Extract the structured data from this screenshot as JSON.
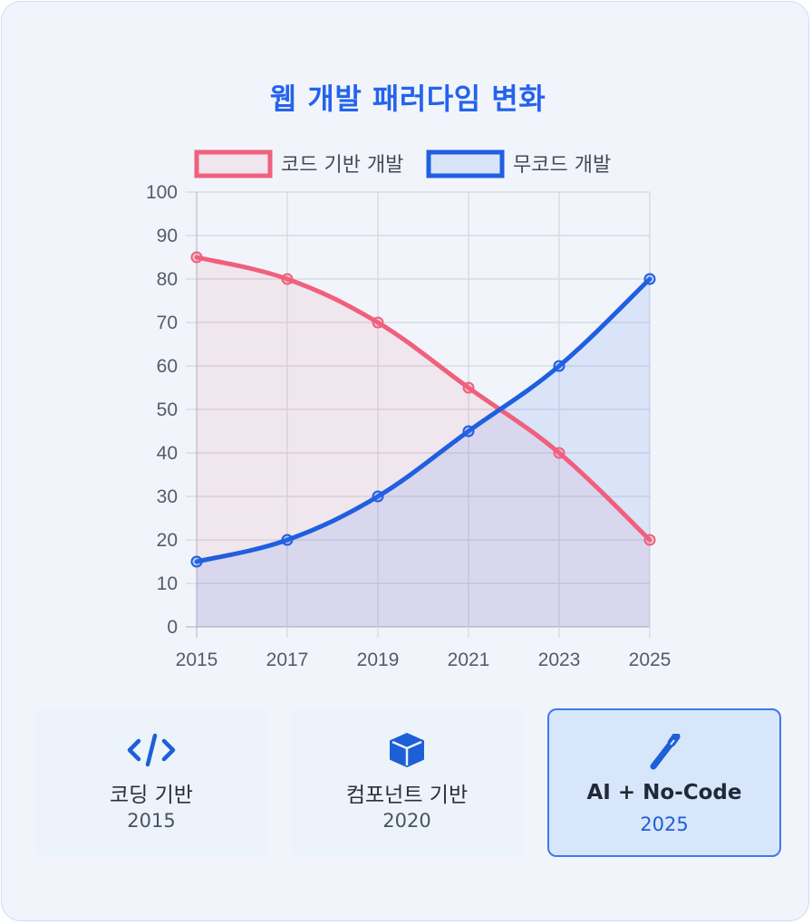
{
  "title": "웹 개발 패러다임 변화",
  "chart_data": {
    "type": "line",
    "x": [
      "2015",
      "2017",
      "2019",
      "2021",
      "2023",
      "2025"
    ],
    "ylim": [
      0,
      100
    ],
    "yticks": [
      0,
      10,
      20,
      30,
      40,
      50,
      60,
      70,
      80,
      90,
      100
    ],
    "grid": true,
    "legend": "top",
    "series": [
      {
        "name": "코드 기반 개발",
        "values": [
          85,
          80,
          70,
          55,
          40,
          20
        ],
        "color": "#f0607d",
        "fill": "rgba(240,96,125,0.10)"
      },
      {
        "name": "무코드 개발",
        "values": [
          15,
          20,
          30,
          45,
          60,
          80
        ],
        "color": "#1f5fe0",
        "fill": "rgba(59,110,240,0.12)"
      }
    ]
  },
  "stages": [
    {
      "icon": "code-icon",
      "label": "코딩 기반",
      "year": "2015"
    },
    {
      "icon": "cube-icon",
      "label": "컴포넌트 기반",
      "year": "2020"
    },
    {
      "icon": "magic-wand-icon",
      "label": "AI + No-Code",
      "year": "2025"
    }
  ]
}
